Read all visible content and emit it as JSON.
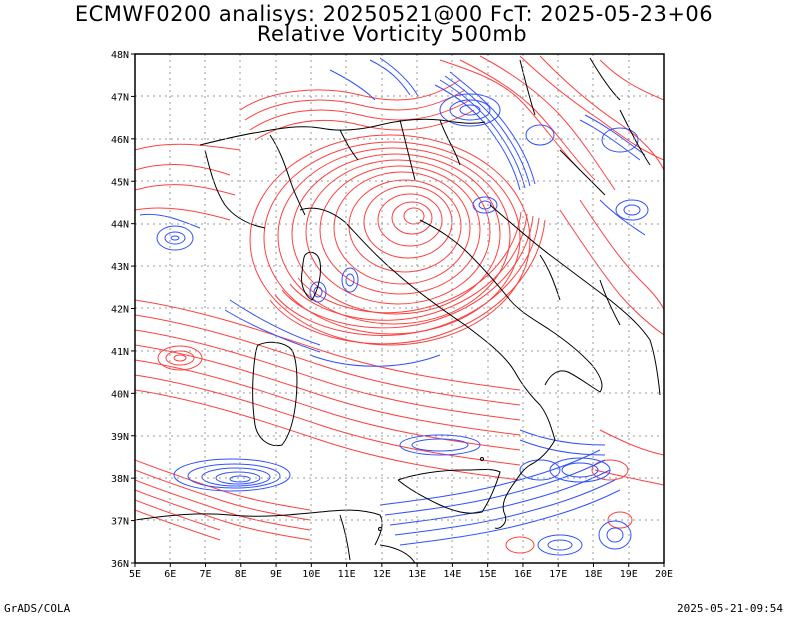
{
  "header": {
    "title_line1": "ECMWF0200 analisys: 20250521@00 FcT: 2025-05-23+06",
    "title_line2": "Relative Vorticity 500mb"
  },
  "footer": {
    "left": "GrADS/COLA",
    "right": "2025-05-21-09:54"
  },
  "map": {
    "lon_labels": [
      "5E",
      "6E",
      "7E",
      "8E",
      "9E",
      "10E",
      "11E",
      "12E",
      "13E",
      "14E",
      "15E",
      "16E",
      "17E",
      "18E",
      "19E",
      "20E"
    ],
    "lat_labels": [
      "48N",
      "47N",
      "46N",
      "45N",
      "44N",
      "43N",
      "42N",
      "41N",
      "40N",
      "39N",
      "38N",
      "37N",
      "36N"
    ],
    "colors": {
      "positive": "#ff4040",
      "negative": "#3050ff",
      "border": "#000000",
      "grid": "#999999"
    }
  }
}
